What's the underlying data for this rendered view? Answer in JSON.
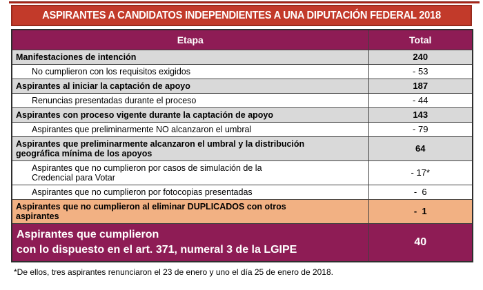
{
  "title": "ASPIRANTES A CANDIDATOS INDEPENDIENTES A UNA DIPUTACIÓN FEDERAL 2018",
  "table": {
    "headers": {
      "etapa": "Etapa",
      "total": "Total"
    },
    "rows": [
      {
        "label": "Manifestaciones de intención",
        "value": "240",
        "style": "summary"
      },
      {
        "label": "No cumplieron con los requisitos exigidos",
        "value": "- 53",
        "style": "detail"
      },
      {
        "label": "Aspirantes al iniciar la captación de apoyo",
        "value": "187",
        "style": "summary"
      },
      {
        "label": "Renuncias presentadas durante el proceso",
        "value": "- 44",
        "style": "detail"
      },
      {
        "label": "Aspirantes con proceso vigente durante la captación de apoyo",
        "value": "143",
        "style": "summary"
      },
      {
        "label": "Aspirantes que preliminarmente NO alcanzaron el umbral",
        "value": "- 79",
        "style": "detail"
      },
      {
        "label": "Aspirantes que preliminarmente alcanzaron el umbral y la distribución\ngeográfica mínima de los apoyos",
        "value": "64",
        "style": "summary"
      },
      {
        "label": "Aspirantes que no cumplieron por casos de simulación de la\nCredencial para Votar",
        "value": "- 17*",
        "style": "detail"
      },
      {
        "label": "Aspirantes que no cumplieron por fotocopias presentadas",
        "value": "-  6",
        "style": "detail"
      },
      {
        "label": "Aspirantes que no cumplieron al eliminar DUPLICADOS con otros\naspirantes",
        "value": "-  1",
        "style": "duplicates"
      },
      {
        "label": "Aspirantes que cumplieron\ncon lo dispuesto en el art. 371, numeral 3 de la LGIPE",
        "value": "40",
        "style": "final"
      }
    ]
  },
  "footnote": "*De ellos, tres aspirantes renunciaron el 23 de enero y uno el día 25 de enero de 2018.",
  "colors": {
    "title_red": "#c23a2a",
    "title_border": "#962a1c",
    "header_magenta": "#8e1c55",
    "row_gray": "#d9d9d9",
    "row_orange": "#f2b183",
    "final_magenta": "#8e1c55",
    "grid_border": "#3f3f3f"
  }
}
